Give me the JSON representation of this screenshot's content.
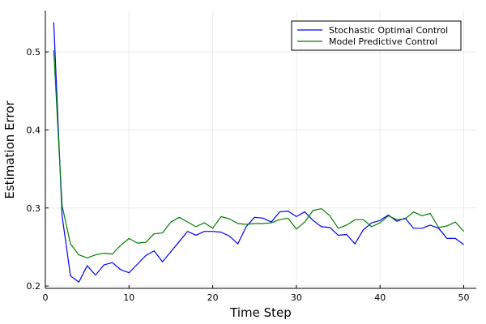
{
  "chart_data": {
    "type": "line",
    "title": "",
    "xlabel": "Time Step",
    "ylabel": "Estimation Error",
    "xlim": [
      0,
      51.5
    ],
    "ylim": [
      0.197,
      0.553
    ],
    "xticks": [
      0,
      10,
      20,
      30,
      40,
      50
    ],
    "yticks": [
      0.2,
      0.3,
      0.4,
      0.5
    ],
    "ytick_labels": [
      "0.2",
      "0.3",
      "0.4",
      "0.5"
    ],
    "grid": true,
    "legend_position": "top-right",
    "x": [
      1,
      2,
      3,
      4,
      5,
      6,
      7,
      8,
      9,
      10,
      11,
      12,
      13,
      14,
      15,
      16,
      17,
      18,
      19,
      20,
      21,
      22,
      23,
      24,
      25,
      26,
      27,
      28,
      29,
      30,
      31,
      32,
      33,
      34,
      35,
      36,
      37,
      38,
      39,
      40,
      41,
      42,
      43,
      44,
      45,
      46,
      47,
      48,
      49,
      50
    ],
    "series": [
      {
        "name": "Stochastic Optimal Control",
        "color": "#0000ff",
        "values": [
          0.538,
          0.29,
          0.213,
          0.205,
          0.226,
          0.214,
          0.227,
          0.23,
          0.221,
          0.217,
          0.228,
          0.239,
          0.245,
          0.231,
          0.244,
          0.257,
          0.27,
          0.265,
          0.27,
          0.27,
          0.269,
          0.264,
          0.254,
          0.276,
          0.288,
          0.287,
          0.282,
          0.295,
          0.296,
          0.289,
          0.295,
          0.284,
          0.276,
          0.275,
          0.265,
          0.266,
          0.254,
          0.272,
          0.281,
          0.284,
          0.291,
          0.283,
          0.287,
          0.274,
          0.274,
          0.278,
          0.274,
          0.261,
          0.261,
          0.253
        ]
      },
      {
        "name": "Model Predictive Control",
        "color": "#008000",
        "values": [
          0.502,
          0.303,
          0.254,
          0.24,
          0.236,
          0.24,
          0.242,
          0.241,
          0.252,
          0.261,
          0.255,
          0.256,
          0.267,
          0.268,
          0.282,
          0.288,
          0.282,
          0.276,
          0.281,
          0.274,
          0.289,
          0.286,
          0.28,
          0.279,
          0.28,
          0.28,
          0.281,
          0.285,
          0.287,
          0.273,
          0.282,
          0.297,
          0.299,
          0.29,
          0.274,
          0.278,
          0.285,
          0.285,
          0.276,
          0.281,
          0.29,
          0.285,
          0.286,
          0.295,
          0.29,
          0.293,
          0.275,
          0.277,
          0.282,
          0.27
        ]
      }
    ]
  }
}
